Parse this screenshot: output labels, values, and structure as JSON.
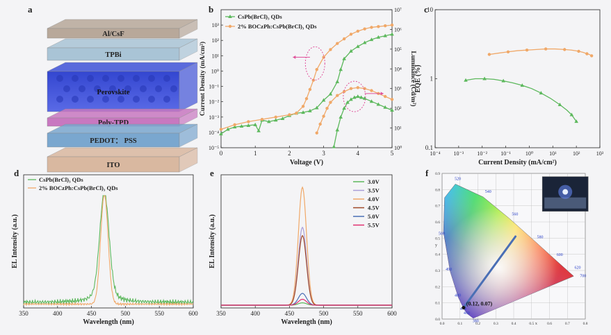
{
  "colors": {
    "green": "#5cb85c",
    "orange": "#f0a868",
    "pink": "#e0509a",
    "bg": "#f4f4f6"
  },
  "panel_a": {
    "label": "a",
    "layers": [
      {
        "name": "Al/CsF",
        "color": "#b8a89a"
      },
      {
        "name": "TPBi",
        "color": "#a9c4d6"
      },
      {
        "name": "Perovskite",
        "color": "#4052d8"
      },
      {
        "name": "Poly-TPD",
        "color": "#c878c0"
      },
      {
        "name": "PEDOT： PSS",
        "color": "#7aa7cf"
      },
      {
        "name": "ITO",
        "color": "#d9b8a0"
      }
    ]
  },
  "chart_data": [
    {
      "id": "b",
      "type": "line",
      "label": "b",
      "xlabel": "Voltage (V)",
      "ylabel": "Current Density (mA/cm²)",
      "ylabel2": "Luminance (Cd/m²)",
      "xlim": [
        0,
        5
      ],
      "xticks": [
        "0",
        "1",
        "2",
        "3",
        "4",
        "5"
      ],
      "ylim_log": [
        -5,
        4
      ],
      "yticks": [
        "10⁻⁵",
        "10⁻⁴",
        "10⁻³",
        "10⁻²",
        "10⁻¹",
        "10⁰",
        "10¹",
        "10²",
        "10³"
      ],
      "y2lim_log": [
        0,
        7
      ],
      "y2ticks": [
        "10⁰",
        "10¹",
        "10²",
        "10³",
        "10⁴",
        "10⁵",
        "10⁶",
        "10⁷"
      ],
      "legend": [
        "CsPb(BrCl)₃ QDs",
        "2% BOCzPh:CsPb(BrCl)₃ QDs"
      ],
      "series": [
        {
          "name": "green-current",
          "color": "green",
          "axis": "left",
          "marker": "triangle",
          "x": [
            0,
            0.2,
            0.4,
            0.6,
            0.8,
            1.0,
            1.1,
            1.2,
            1.4,
            1.6,
            1.8,
            2.0,
            2.2,
            2.4,
            2.6,
            2.8,
            3.0,
            3.2,
            3.4,
            3.5,
            3.6,
            3.8,
            4.0,
            4.2,
            4.4,
            4.6,
            4.8,
            5.0
          ],
          "y": [
            -4.1,
            -3.8,
            -3.65,
            -3.6,
            -3.55,
            -3.5,
            -3.9,
            -3.2,
            -3.3,
            -3.2,
            -3.1,
            -2.9,
            -2.75,
            -2.7,
            -2.6,
            -2.4,
            -1.9,
            -1.5,
            -0.7,
            0.1,
            0.8,
            1.3,
            1.6,
            1.85,
            2.05,
            2.2,
            2.3,
            2.4
          ]
        },
        {
          "name": "orange-current",
          "color": "orange",
          "axis": "left",
          "marker": "circle",
          "x": [
            0,
            0.4,
            0.8,
            1.2,
            1.6,
            2.0,
            2.2,
            2.4,
            2.5,
            2.6,
            2.7,
            2.8,
            3.0,
            3.2,
            3.4,
            3.6,
            3.8,
            4.0,
            4.2,
            4.4,
            4.6,
            4.8,
            5.0
          ],
          "y": [
            -3.8,
            -3.5,
            -3.3,
            -3.15,
            -3.0,
            -2.85,
            -2.75,
            -2.3,
            -1.8,
            -1.2,
            -0.6,
            0.1,
            0.9,
            1.4,
            1.8,
            2.1,
            2.4,
            2.6,
            2.75,
            2.85,
            2.9,
            2.95,
            3.0
          ]
        },
        {
          "name": "green-luminance",
          "color": "green",
          "axis": "right",
          "marker": "triangle",
          "x": [
            3.3,
            3.4,
            3.5,
            3.6,
            3.7,
            3.8,
            3.9,
            4.0,
            4.1,
            4.2,
            4.4,
            4.6,
            4.8,
            5.0
          ],
          "y": [
            0.05,
            0.9,
            1.55,
            2.0,
            2.3,
            2.45,
            2.55,
            2.6,
            2.55,
            2.5,
            2.35,
            2.2,
            2.05,
            1.9
          ]
        },
        {
          "name": "orange-luminance",
          "color": "orange",
          "axis": "right",
          "marker": "circle",
          "x": [
            2.8,
            2.9,
            3.0,
            3.1,
            3.2,
            3.4,
            3.6,
            3.8,
            4.0,
            4.2,
            4.4,
            4.6,
            4.8,
            5.0
          ],
          "y": [
            0.75,
            1.2,
            1.6,
            2.0,
            2.3,
            2.65,
            2.85,
            3.0,
            3.05,
            3.0,
            2.9,
            2.75,
            2.6,
            2.45
          ]
        }
      ]
    },
    {
      "id": "c",
      "type": "line",
      "label": "c",
      "xlabel": "Current Density (mA/cm²)",
      "ylabel": "EQE (%)",
      "xlim_log": [
        -4,
        3
      ],
      "xticks": [
        "10⁻⁴",
        "10⁻³",
        "10⁻²",
        "10⁻¹",
        "10⁰",
        "10¹",
        "10²",
        "10³"
      ],
      "ylim_log": [
        -1,
        1
      ],
      "yticks": [
        "0.1",
        "1",
        "10"
      ],
      "series": [
        {
          "name": "orange-eqe",
          "color": "orange",
          "axis": "left",
          "marker": "circle",
          "x": [
            -1.7,
            -1.3,
            -0.9,
            -0.5,
            -0.1,
            0.3,
            0.7,
            1.1,
            1.5,
            1.8,
            2.1,
            2.3,
            2.45,
            2.55,
            2.65
          ],
          "y": [
            2.25,
            2.35,
            2.45,
            2.55,
            2.6,
            2.65,
            2.7,
            2.7,
            2.65,
            2.6,
            2.5,
            2.4,
            2.3,
            2.25,
            2.15
          ]
        },
        {
          "name": "green-eqe",
          "color": "green",
          "axis": "left",
          "marker": "triangle",
          "x": [
            -2.7,
            -2.3,
            -1.9,
            -1.5,
            -1.1,
            -0.7,
            -0.3,
            0.1,
            0.5,
            0.9,
            1.3,
            1.6,
            1.8,
            2.0
          ],
          "y": [
            0.95,
            1.0,
            1.0,
            0.98,
            0.93,
            0.87,
            0.8,
            0.72,
            0.62,
            0.52,
            0.42,
            0.35,
            0.3,
            0.24
          ]
        }
      ]
    },
    {
      "id": "d",
      "type": "line",
      "label": "d",
      "xlabel": "Wavelength (nm)",
      "ylabel": "EL Intensity (a.u.)",
      "xlim": [
        350,
        600
      ],
      "xticks": [
        "350",
        "400",
        "450",
        "500",
        "550",
        "600"
      ],
      "legend": [
        "CsPb(BrCl)₃ QDs",
        "2% BOCzPh:CsPb(BrCl)₃ QDs"
      ],
      "series": [
        {
          "name": "green-el",
          "color": "green",
          "peak": 469,
          "fwhm": 16,
          "noise": 0.025
        },
        {
          "name": "orange-el",
          "color": "orange",
          "peak": 469,
          "fwhm": 13,
          "noise": 0.01
        }
      ]
    },
    {
      "id": "e",
      "type": "line",
      "label": "e",
      "xlabel": "Wavelength (nm)",
      "ylabel": "EL Intensity (a.u.)",
      "xlim": [
        350,
        600
      ],
      "xticks": [
        "350",
        "400",
        "450",
        "500",
        "550",
        "600"
      ],
      "series": [
        {
          "name": "3.0V",
          "color": "#5cb85c",
          "peak": 469,
          "fwhm": 14,
          "amp": 0.02
        },
        {
          "name": "3.5V",
          "color": "#a99ed8",
          "peak": 469,
          "fwhm": 14,
          "amp": 0.66
        },
        {
          "name": "4.0V",
          "color": "#f0a868",
          "peak": 469,
          "fwhm": 14,
          "amp": 1.0
        },
        {
          "name": "4.5V",
          "color": "#a04828",
          "peak": 469,
          "fwhm": 14,
          "amp": 0.59
        },
        {
          "name": "5.0V",
          "color": "#4a6fb5",
          "peak": 469,
          "fwhm": 14,
          "amp": 0.1
        },
        {
          "name": "5.5V",
          "color": "#e03070",
          "peak": 469,
          "fwhm": 14,
          "amp": 0.05
        }
      ]
    },
    {
      "id": "f",
      "type": "scatter",
      "label": "f",
      "xlabel": "x",
      "ylabel": "y",
      "xticks": [
        "0.0",
        "0.1",
        "0.2",
        "0.3",
        "0.4",
        "0.5",
        "0.6",
        "0.7",
        "0.8"
      ],
      "yticks": [
        "0.0",
        "0.1",
        "0.2",
        "0.3",
        "0.4",
        "0.5",
        "0.6",
        "0.7",
        "0.8",
        "0.9"
      ],
      "locus_labels": [
        "380",
        "460",
        "470",
        "480",
        "490",
        "500",
        "520",
        "540",
        "560",
        "580",
        "600",
        "620",
        "700"
      ],
      "point": {
        "x": 0.12,
        "y": 0.07,
        "label": "(0.12, 0.07)"
      }
    }
  ]
}
